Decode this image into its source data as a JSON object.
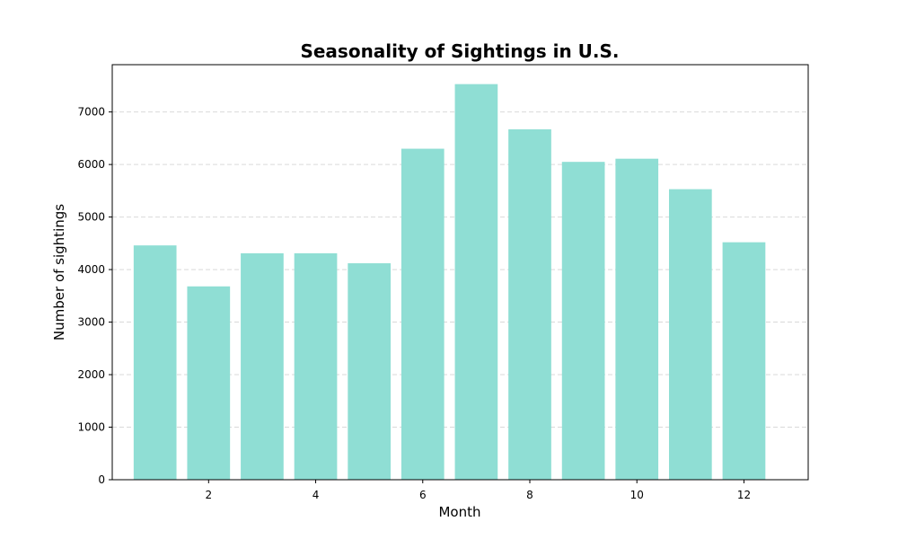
{
  "chart_data": {
    "type": "bar",
    "title": "Seasonality of Sightings in U.S.",
    "xlabel": "Month",
    "ylabel": "Number of sightings",
    "x": [
      1,
      2,
      3,
      4,
      5,
      6,
      7,
      8,
      9,
      10,
      11,
      12
    ],
    "values": [
      4460,
      3680,
      4310,
      4310,
      4120,
      6300,
      7530,
      6670,
      6050,
      6110,
      5530,
      4520
    ],
    "xticks": [
      2,
      4,
      6,
      8,
      10,
      12
    ],
    "yticks": [
      0,
      1000,
      2000,
      3000,
      4000,
      5000,
      6000,
      7000
    ],
    "xlim": [
      0.2,
      13.2
    ],
    "ylim": [
      0,
      7900
    ],
    "grid": "y-dashed",
    "bar_color": "#8fded4",
    "grid_color": "#d9d9d9"
  }
}
